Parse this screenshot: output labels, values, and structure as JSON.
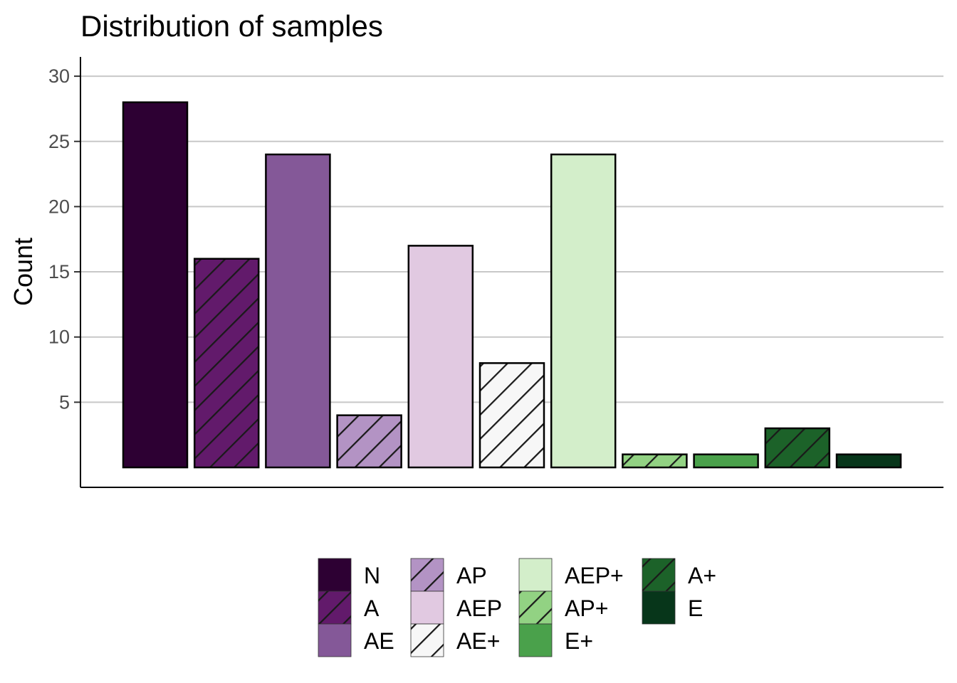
{
  "chart_data": {
    "type": "bar",
    "title": "Distribution of samples",
    "xlabel": "",
    "ylabel": "Count",
    "ylim": [
      0,
      31.5
    ],
    "yticks": [
      5,
      10,
      15,
      20,
      25,
      30
    ],
    "grid": true,
    "legend_position": "bottom",
    "categories": [
      "N",
      "A",
      "AE",
      "AP",
      "AEP",
      "AE+",
      "AEP+",
      "AP+",
      "E+",
      "A+",
      "E"
    ],
    "values": [
      28,
      16,
      24,
      4,
      17,
      8,
      24,
      1,
      1,
      3,
      1
    ],
    "colors": [
      "#2d0033",
      "#621a6b",
      "#845898",
      "#b393c4",
      "#e1c9e1",
      "#f7f7f7",
      "#d3eeca",
      "#92d283",
      "#4aa14b",
      "#1c6229",
      "#07361a"
    ],
    "hatched": [
      false,
      true,
      false,
      true,
      false,
      true,
      false,
      true,
      false,
      true,
      false
    ]
  }
}
